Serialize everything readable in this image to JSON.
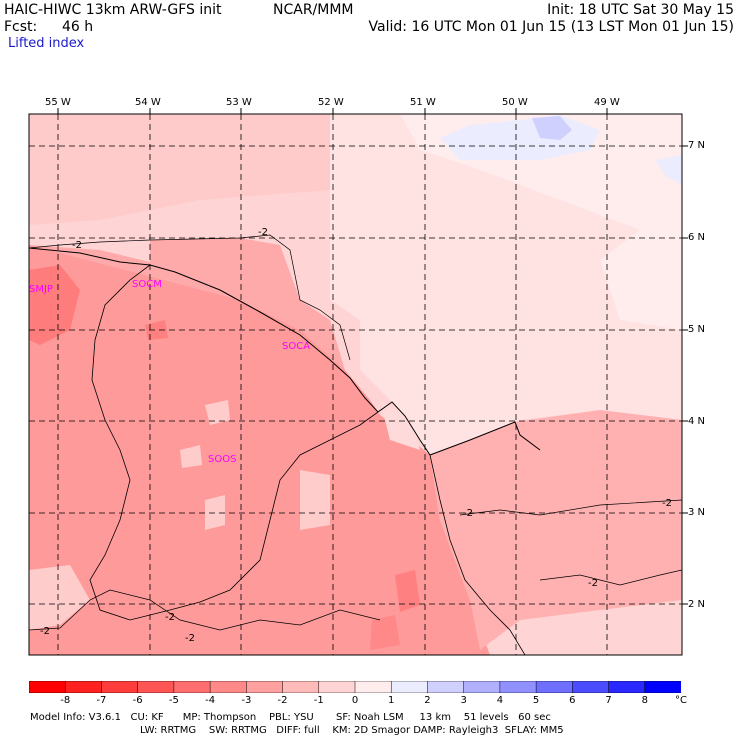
{
  "header": {
    "model": "HAIC-HIWC 13km ARW-GFS init",
    "center": "NCAR/MMM",
    "init": "Init: 18 UTC Sat 30 May 15",
    "fcst_label": "Fcst:",
    "fcst_value": "46 h",
    "valid": "Valid: 16 UTC Mon 01 Jun 15 (13 LST Mon 01 Jun 15)"
  },
  "field_name": "Lifted index",
  "map": {
    "longitudes": [
      "55 W",
      "54 W",
      "53 W",
      "52 W",
      "51 W",
      "50 W",
      "49 W"
    ],
    "latitudes": [
      "7 N",
      "6 N",
      "5 N",
      "4 N",
      "3 N",
      "2 N"
    ],
    "stations": [
      "SMJP",
      "SOCM",
      "SOCA",
      "SOOS"
    ],
    "contour_label": "-2"
  },
  "colorbar": {
    "labels": [
      "-8",
      "-7",
      "-6",
      "-5",
      "-4",
      "-3",
      "-2",
      "-1",
      "0",
      "1",
      "2",
      "3",
      "4",
      "5",
      "6",
      "7",
      "8"
    ],
    "unit": "°C",
    "colors": [
      "#ff0000",
      "#ff2020",
      "#ff3c3c",
      "#ff5555",
      "#ff6e6e",
      "#ff8888",
      "#ffa0a0",
      "#ffbaba",
      "#ffd4d4",
      "#ffecec",
      "#ececff",
      "#d0d0ff",
      "#b0b0ff",
      "#9090ff",
      "#6e6eff",
      "#4c4cff",
      "#2828ff",
      "#0000ff"
    ]
  },
  "footer": {
    "line1": "Model Info: V3.6.1   CU: KF      MP: Thompson    PBL: YSU       SF: Noah LSM     13 km    51 levels   60 sec",
    "line2": "LW: RRTMG    SW: RRTMG   DIFF: full    KM: 2D Smagor DAMP: Rayleigh3  SFLAY: MM5"
  }
}
